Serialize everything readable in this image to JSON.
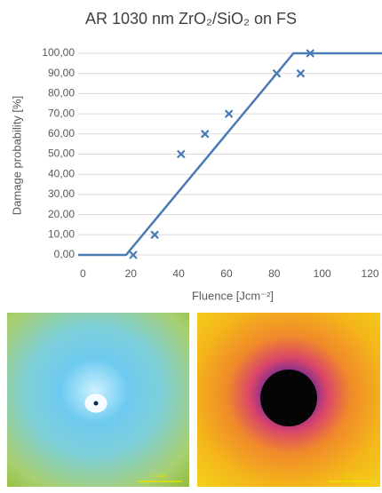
{
  "chart_data": {
    "type": "scatter",
    "title": "AR 1030 nm ZrO₂/SiO₂ on FS",
    "xlabel": "Fluence [Jcm⁻²]",
    "ylabel": "Damage probability [%]",
    "xlim": [
      -2,
      125
    ],
    "ylim": [
      0,
      100
    ],
    "xticks": [
      0,
      20,
      40,
      60,
      80,
      100,
      120
    ],
    "yticks": [
      {
        "value": 0,
        "label": "0,00"
      },
      {
        "value": 10,
        "label": "10,00"
      },
      {
        "value": 20,
        "label": "20,00"
      },
      {
        "value": 30,
        "label": "30,00"
      },
      {
        "value": 40,
        "label": "40,00"
      },
      {
        "value": 50,
        "label": "50,00"
      },
      {
        "value": 60,
        "label": "60,00"
      },
      {
        "value": 70,
        "label": "70,00"
      },
      {
        "value": 80,
        "label": "80,00"
      },
      {
        "value": 90,
        "label": "90,00"
      },
      {
        "value": 100,
        "label": "100,00"
      }
    ],
    "grid": true,
    "series": [
      {
        "type": "line",
        "color": "#4a7ab5",
        "x": [
          -2,
          18,
          88,
          125
        ],
        "values": [
          0,
          0,
          100,
          100
        ]
      },
      {
        "type": "scatter",
        "color": "#4a7ab5",
        "x": [
          21,
          30,
          41,
          51,
          61,
          81,
          91,
          95
        ],
        "values": [
          0,
          10,
          50,
          60,
          70,
          90,
          90,
          100
        ]
      }
    ]
  },
  "images": [
    {
      "scale_bar": "64 µm"
    },
    {
      "scale_bar": "127 µm"
    }
  ]
}
